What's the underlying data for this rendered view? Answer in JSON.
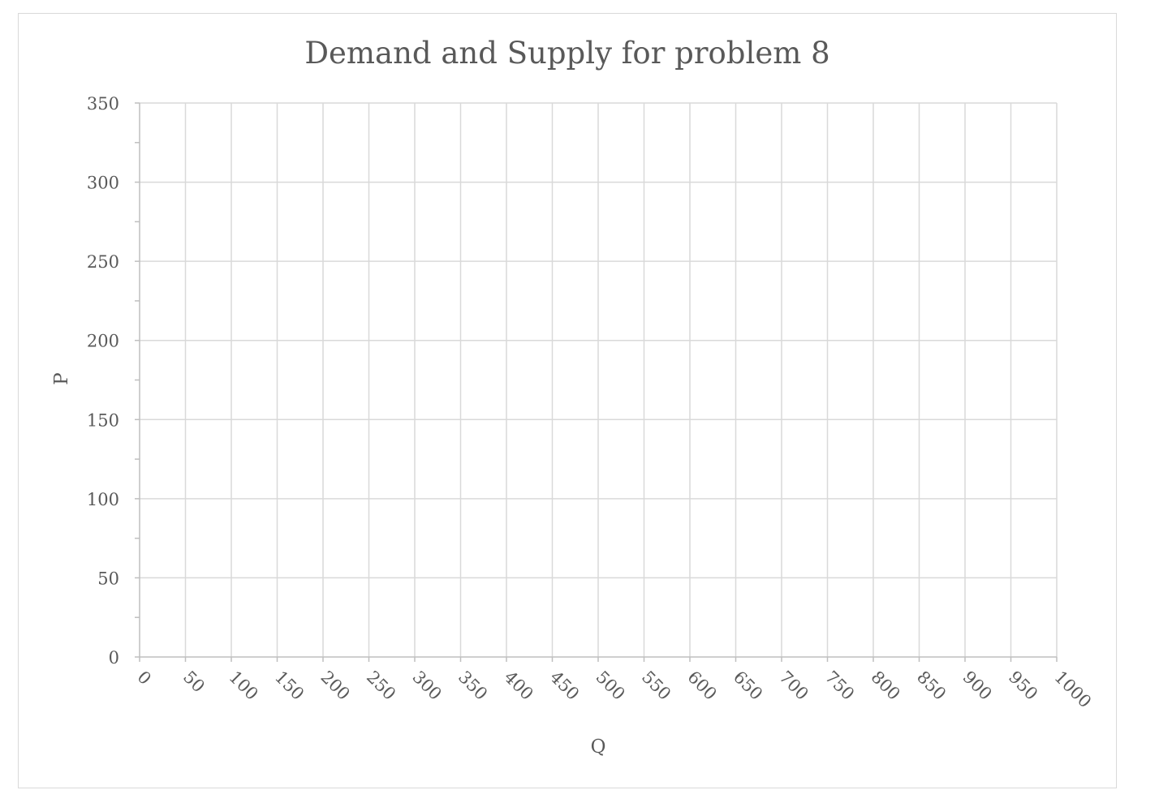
{
  "chart_data": {
    "type": "line",
    "title": "Demand and Supply for problem 8",
    "xlabel": "Q",
    "ylabel": "P",
    "xlim": [
      0,
      1000
    ],
    "ylim": [
      0,
      350
    ],
    "x_ticks": [
      "0",
      "50",
      "100",
      "150",
      "200",
      "250",
      "300",
      "350",
      "400",
      "450",
      "500",
      "550",
      "600",
      "650",
      "700",
      "750",
      "800",
      "850",
      "900",
      "950",
      "1000"
    ],
    "y_ticks": [
      "0",
      "50",
      "100",
      "150",
      "200",
      "250",
      "300",
      "350"
    ],
    "y_minor_step": 25,
    "grid": true,
    "legend": "none",
    "series": [],
    "colors": {
      "gridline": "#d9d9d9",
      "axis": "#bfbfbf",
      "text": "#595959"
    }
  }
}
